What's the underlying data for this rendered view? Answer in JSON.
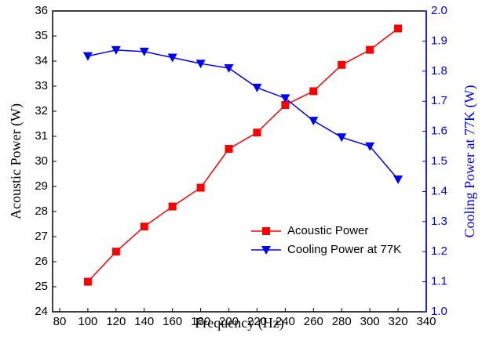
{
  "chart_data": {
    "type": "line",
    "x_label": "Frequency  (Hz)",
    "y_label": "Acoustic Power (W)",
    "y2_label": "Cooling Power at 77K (W)",
    "x": [
      100,
      120,
      140,
      160,
      180,
      200,
      220,
      240,
      260,
      280,
      300,
      320
    ],
    "series": [
      {
        "name": "Acoustic Power",
        "color": "#ff0000",
        "marker": "square",
        "values": [
          25.2,
          26.4,
          27.4,
          28.2,
          28.95,
          30.5,
          31.15,
          32.25,
          32.8,
          33.85,
          34.45,
          35.3
        ]
      },
      {
        "name": "Cooling Power at 77K",
        "color": "#0000ff",
        "marker": "triangle-down",
        "axis": "y2",
        "values": [
          1.85,
          1.87,
          1.865,
          1.845,
          1.825,
          1.81,
          1.745,
          1.71,
          1.635,
          1.58,
          1.55,
          1.44
        ]
      }
    ],
    "xlim": [
      75,
      340
    ],
    "xticks": [
      80,
      100,
      120,
      140,
      160,
      180,
      200,
      220,
      240,
      260,
      280,
      300,
      320,
      340
    ],
    "ylim": [
      24,
      36
    ],
    "yticks": [
      24,
      25,
      26,
      27,
      28,
      29,
      30,
      31,
      32,
      33,
      34,
      35,
      36
    ],
    "y2lim": [
      1.0,
      2.0
    ],
    "y2ticks": [
      {
        "value": 1.0,
        "label": "1.0"
      },
      1.1,
      1.2,
      1.3,
      1.4,
      1.5,
      1.6,
      1.7,
      1.8,
      1.9,
      {
        "value": 2.0,
        "label": "2.0"
      }
    ],
    "y2_color": "#0000ff",
    "legend": "lower-right"
  }
}
